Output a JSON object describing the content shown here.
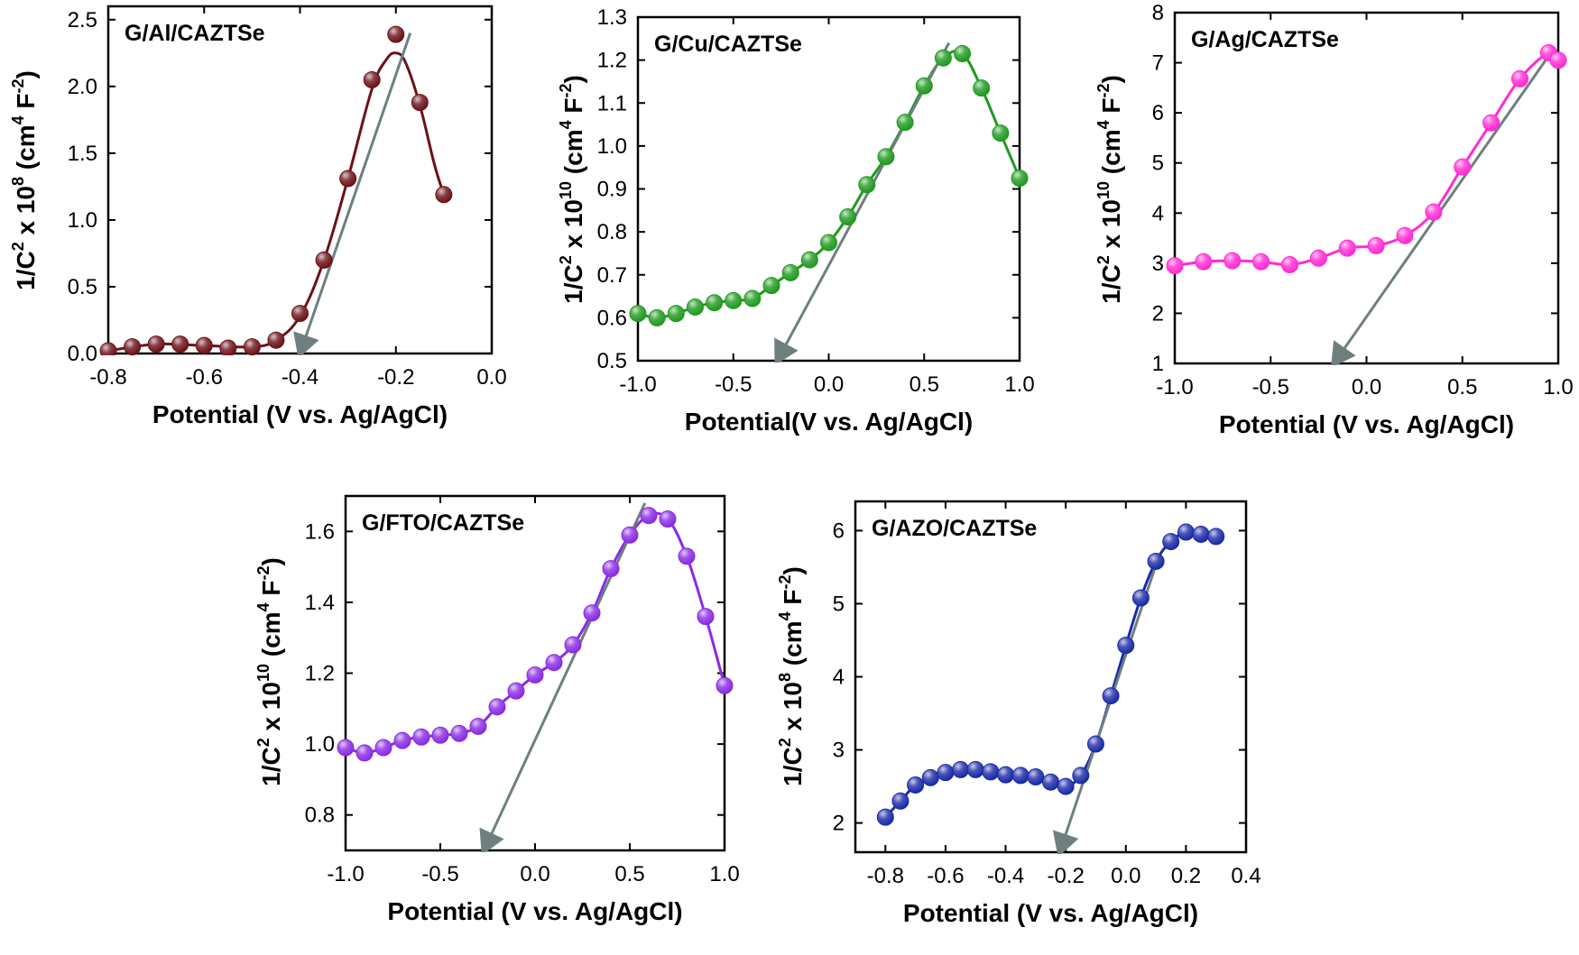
{
  "chart_data": [
    {
      "type": "line",
      "title": "G/Al/CAZTSe",
      "xlabel": "Potential (V vs. Ag/AgCl)",
      "ylabel": {
        "base": "1/C",
        "sq": "2",
        "mid": " x 10",
        "exp": "8",
        "unit": " (cm",
        "u4": "4",
        "unitF": " F",
        "um2": "-2",
        "close": ")"
      },
      "xlim": [
        -0.8,
        0.0
      ],
      "ylim": [
        0.0,
        2.6
      ],
      "xticks": [
        -0.8,
        -0.6,
        -0.4,
        -0.2,
        0.0
      ],
      "xtick_labels": [
        "-0.8",
        "-0.6",
        "-0.4",
        "-0.2",
        "0.0"
      ],
      "yticks": [
        0.0,
        0.5,
        1.0,
        1.5,
        2.0,
        2.5
      ],
      "ytick_labels": [
        "0.0",
        "0.5",
        "1.0",
        "1.5",
        "2.0",
        "2.5"
      ],
      "color": "#6b1218",
      "x": [
        -0.8,
        -0.75,
        -0.7,
        -0.65,
        -0.6,
        -0.55,
        -0.5,
        -0.45,
        -0.4,
        -0.35,
        -0.3,
        -0.25,
        -0.2,
        -0.15,
        -0.1
      ],
      "y": [
        0.02,
        0.05,
        0.07,
        0.07,
        0.06,
        0.04,
        0.05,
        0.1,
        0.3,
        0.7,
        1.31,
        2.05,
        2.39,
        1.88,
        1.19
      ],
      "curve_x": [
        -0.8,
        -0.7,
        -0.6,
        -0.5,
        -0.45,
        -0.4,
        -0.35,
        -0.3,
        -0.25,
        -0.22,
        -0.2,
        -0.18,
        -0.15,
        -0.12,
        -0.1
      ],
      "curve_y": [
        0.02,
        0.07,
        0.06,
        0.05,
        0.1,
        0.28,
        0.7,
        1.31,
        1.98,
        2.2,
        2.25,
        2.18,
        1.86,
        1.42,
        1.19
      ],
      "tangent": {
        "from": [
          -0.17,
          2.4
        ],
        "to": [
          -0.4,
          0.0
        ]
      }
    },
    {
      "type": "line",
      "title": "G/Cu/CAZTSe",
      "xlabel": "Potential(V vs. Ag/AgCl)",
      "ylabel": {
        "base": "1/C",
        "sq": "2",
        "mid": " x 10",
        "exp": "10",
        "unit": " (cm",
        "u4": "4",
        "unitF": " F",
        "um2": "-2",
        "close": ")"
      },
      "xlim": [
        -1.0,
        1.0
      ],
      "ylim": [
        0.5,
        1.3
      ],
      "xticks": [
        -1.0,
        -0.5,
        0.0,
        0.5,
        1.0
      ],
      "xtick_labels": [
        "-1.0",
        "-0.5",
        "0.0",
        "0.5",
        "1.0"
      ],
      "yticks": [
        0.5,
        0.6,
        0.7,
        0.8,
        0.9,
        1.0,
        1.1,
        1.2,
        1.3
      ],
      "ytick_labels": [
        "0.5",
        "0.6",
        "0.7",
        "0.8",
        "0.9",
        "1.0",
        "1.1",
        "1.2",
        "1.3"
      ],
      "color": "#1f9a1f",
      "x": [
        -1.0,
        -0.9,
        -0.8,
        -0.7,
        -0.6,
        -0.5,
        -0.4,
        -0.3,
        -0.2,
        -0.1,
        0.0,
        0.1,
        0.2,
        0.3,
        0.4,
        0.5,
        0.6,
        0.7,
        0.8,
        0.9,
        1.0
      ],
      "y": [
        0.61,
        0.6,
        0.61,
        0.625,
        0.635,
        0.64,
        0.645,
        0.675,
        0.705,
        0.735,
        0.775,
        0.835,
        0.91,
        0.975,
        1.055,
        1.14,
        1.205,
        1.215,
        1.135,
        1.03,
        0.925
      ],
      "tangent": {
        "from": [
          0.63,
          1.24
        ],
        "to": [
          -0.27,
          0.5
        ]
      }
    },
    {
      "type": "line",
      "title": "G/Ag/CAZTSe",
      "xlabel": "Potential (V vs. Ag/AgCl)",
      "ylabel": {
        "base": "1/C",
        "sq": "2",
        "mid": " x 10",
        "exp": "10",
        "unit": " (cm",
        "u4": "4",
        "unitF": " F",
        "um2": "-2",
        "close": ")"
      },
      "xlim": [
        -1.0,
        1.0
      ],
      "ylim": [
        1,
        8
      ],
      "xticks": [
        -1.0,
        -0.5,
        0.0,
        0.5,
        1.0
      ],
      "xtick_labels": [
        "-1.0",
        "-0.5",
        "0.0",
        "0.5",
        "1.0"
      ],
      "yticks": [
        1,
        2,
        3,
        4,
        5,
        6,
        7,
        8
      ],
      "ytick_labels": [
        "1",
        "2",
        "3",
        "4",
        "5",
        "6",
        "7",
        "8"
      ],
      "color": "#ff2bd4",
      "x": [
        -1.0,
        -0.85,
        -0.7,
        -0.55,
        -0.4,
        -0.25,
        -0.1,
        0.05,
        0.2,
        0.35,
        0.5,
        0.65,
        0.8,
        0.95,
        1.0
      ],
      "y": [
        2.95,
        3.03,
        3.05,
        3.03,
        2.97,
        3.1,
        3.3,
        3.35,
        3.55,
        4.02,
        4.92,
        5.8,
        6.68,
        7.2,
        7.05
      ],
      "tangent": {
        "from": [
          0.98,
          7.3
        ],
        "to": [
          -0.17,
          1.0
        ]
      }
    },
    {
      "type": "line",
      "title": "G/FTO/CAZTSe",
      "xlabel": "Potential (V vs. Ag/AgCl)",
      "ylabel": {
        "base": "1/C",
        "sq": "2",
        "mid": " x 10",
        "exp": "10",
        "unit": " (cm",
        "u4": "4",
        "unitF": " F",
        "um2": "-2",
        "close": ")"
      },
      "xlim": [
        -1.0,
        1.0
      ],
      "ylim": [
        0.7,
        1.7
      ],
      "xticks": [
        -1.0,
        -0.5,
        0.0,
        0.5,
        1.0
      ],
      "xtick_labels": [
        "-1.0",
        "-0.5",
        "0.0",
        "0.5",
        "1.0"
      ],
      "yticks": [
        0.8,
        1.0,
        1.2,
        1.4,
        1.6
      ],
      "ytick_labels": [
        "0.8",
        "1.0",
        "1.2",
        "1.4",
        "1.6"
      ],
      "color": "#8a2be2",
      "x": [
        -1.0,
        -0.9,
        -0.8,
        -0.7,
        -0.6,
        -0.5,
        -0.4,
        -0.3,
        -0.2,
        -0.1,
        0.0,
        0.1,
        0.2,
        0.3,
        0.4,
        0.5,
        0.6,
        0.7,
        0.8,
        0.9,
        1.0
      ],
      "y": [
        0.99,
        0.975,
        0.99,
        1.01,
        1.02,
        1.025,
        1.03,
        1.05,
        1.105,
        1.15,
        1.195,
        1.23,
        1.28,
        1.37,
        1.495,
        1.59,
        1.645,
        1.635,
        1.53,
        1.36,
        1.165
      ],
      "tangent": {
        "from": [
          0.58,
          1.68
        ],
        "to": [
          -0.27,
          0.7
        ]
      }
    },
    {
      "type": "line",
      "title": "G/AZO/CAZTSe",
      "xlabel": "Potential (V vs. Ag/AgCl)",
      "ylabel": {
        "base": "1/C",
        "sq": "2",
        "mid": " x 10",
        "exp": "8",
        "unit": " (cm",
        "u4": "4",
        "unitF": " F",
        "um2": "-2",
        "close": ")"
      },
      "xlim": [
        -0.9,
        0.4
      ],
      "ylim": [
        1.6,
        6.4
      ],
      "xticks": [
        -0.8,
        -0.6,
        -0.4,
        -0.2,
        0.0,
        0.2,
        0.4
      ],
      "xtick_labels": [
        "-0.8",
        "-0.6",
        "-0.4",
        "-0.2",
        "0.0",
        "0.2",
        "0.4"
      ],
      "yticks": [
        2,
        3,
        4,
        5,
        6
      ],
      "ytick_labels": [
        "2",
        "3",
        "4",
        "5",
        "6"
      ],
      "color": "#1a2aa8",
      "x": [
        -0.8,
        -0.75,
        -0.7,
        -0.65,
        -0.6,
        -0.55,
        -0.5,
        -0.45,
        -0.4,
        -0.35,
        -0.3,
        -0.25,
        -0.2,
        -0.15,
        -0.1,
        -0.05,
        0.0,
        0.05,
        0.1,
        0.15,
        0.2,
        0.25,
        0.3
      ],
      "y": [
        2.08,
        2.3,
        2.52,
        2.62,
        2.69,
        2.73,
        2.73,
        2.7,
        2.66,
        2.65,
        2.63,
        2.56,
        2.5,
        2.65,
        3.08,
        3.74,
        4.43,
        5.08,
        5.58,
        5.85,
        5.98,
        5.95,
        5.92
      ],
      "tangent": {
        "from": [
          0.11,
          5.65
        ],
        "to": [
          -0.22,
          1.6
        ]
      }
    }
  ]
}
